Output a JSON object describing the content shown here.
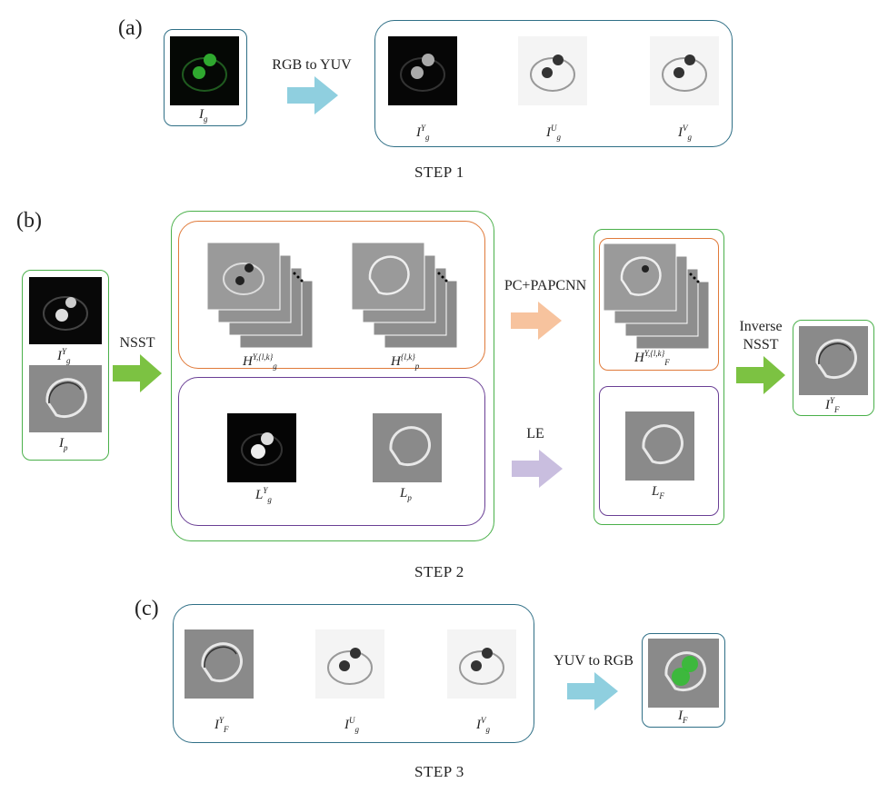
{
  "panels": {
    "a": "(a)",
    "b": "(b)",
    "c": "(c)"
  },
  "steps": {
    "s1": "STEP 1",
    "s2": "STEP 2",
    "s3": "STEP 3"
  },
  "ops": {
    "rgb_to_yuv": "RGB to YUV",
    "nsst": "NSST",
    "pc_papcnn": "PC+PAPCNN",
    "le": "LE",
    "inverse_1": "Inverse",
    "inverse_2": "NSST",
    "yuv_to_rgb": "YUV to RGB"
  },
  "labels": {
    "I": "I",
    "H": "H",
    "L": "L",
    "sub_g": "g",
    "sub_p": "p",
    "sub_F": "F",
    "sup_Y": "Y",
    "sup_U": "U",
    "sup_V": "V",
    "sup_lk": "{l,k}",
    "sup_Ylk": "Y,{l,k}"
  },
  "colors": {
    "teal": "#2f6f86",
    "green": "#4ab04a",
    "orange": "#e07a3a",
    "purple": "#6a3f95",
    "arrow_blue": "#8fcfdf",
    "arrow_green": "#7cc242",
    "arrow_orange": "#f7c39e",
    "arrow_purple": "#c9bedf"
  }
}
